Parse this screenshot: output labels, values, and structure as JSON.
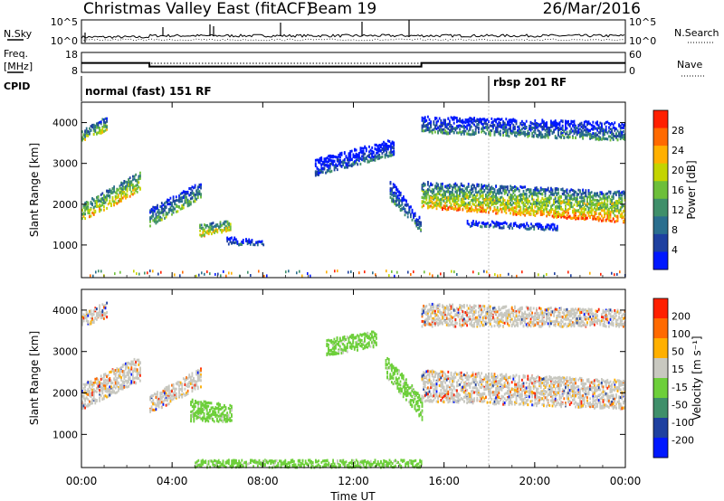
{
  "header": {
    "station": "Christmas Valley East (fitACF)",
    "beam": "Beam 19",
    "date": "26/Mar/2016"
  },
  "top_panels": {
    "nsky_label": "N.Sky",
    "nsky_ticks": [
      "10^5",
      "10^0"
    ],
    "nsearch_label": "N.Search",
    "nsearch_ticks": [
      "10^5",
      "10^0"
    ],
    "freq_label_1": "Freq.",
    "freq_label_2": "[MHz]",
    "freq_ticks": [
      "18",
      "8"
    ],
    "nave_label": "Nave",
    "nave_ticks": [
      "60",
      "0"
    ],
    "cpid_label": "CPID",
    "cpid_modes": [
      {
        "name": "normal (fast) 151 RF",
        "start_hour": 0,
        "end_hour": 18
      },
      {
        "name": "rbsp 201 RF",
        "start_hour": 18,
        "end_hour": 24
      }
    ],
    "frequency_segments": [
      {
        "start_hour": 0,
        "end_hour": 3,
        "freq_mhz": 14.5
      },
      {
        "start_hour": 3,
        "end_hour": 15,
        "freq_mhz": 12
      },
      {
        "start_hour": 15,
        "end_hour": 24,
        "freq_mhz": 14.5
      }
    ]
  },
  "chart_data": [
    {
      "type": "heatmap",
      "panel": "power",
      "ylabel": "Slant Range [km]",
      "yticks": [
        "1000",
        "2000",
        "3000",
        "4000"
      ],
      "ylim": [
        200,
        4500
      ],
      "xlim": [
        0,
        24
      ],
      "colorbar_label": "Power [dB]",
      "colorbar_ticks": [
        "4",
        "8",
        "12",
        "16",
        "20",
        "24",
        "28"
      ],
      "colorbar_range": [
        0,
        30
      ],
      "colors": [
        "#0018ff",
        "#1e40a0",
        "#2a6e8e",
        "#3f8f6a",
        "#6dbf3a",
        "#c4d400",
        "#ffb000",
        "#ff6a00",
        "#ff2000"
      ],
      "regions": [
        {
          "x": [
            0.0,
            2.6
          ],
          "y_bottom": [
            1600,
            2300
          ],
          "y_top": [
            2000,
            2800
          ],
          "power": 22
        },
        {
          "x": [
            0.0,
            1.1
          ],
          "y_bottom": [
            3550,
            3800
          ],
          "y_top": [
            3800,
            4150
          ],
          "power": 18
        },
        {
          "x": [
            3.0,
            5.3
          ],
          "y_bottom": [
            1450,
            2150
          ],
          "y_top": [
            1900,
            2550
          ],
          "power": 15
        },
        {
          "x": [
            5.2,
            6.6
          ],
          "y_bottom": [
            1200,
            1350
          ],
          "y_top": [
            1500,
            1600
          ],
          "power": 22
        },
        {
          "x": [
            6.4,
            8.0
          ],
          "y_bottom": [
            1000,
            1000
          ],
          "y_top": [
            1200,
            1100
          ],
          "power": 8
        },
        {
          "x": [
            10.3,
            13.8
          ],
          "y_bottom": [
            2700,
            3200
          ],
          "y_top": [
            3100,
            3600
          ],
          "power": 7
        },
        {
          "x": [
            13.6,
            15.0
          ],
          "y_bottom": [
            2100,
            1300
          ],
          "y_top": [
            2600,
            1600
          ],
          "power": 12
        },
        {
          "x": [
            15.0,
            24.0
          ],
          "y_bottom": [
            1900,
            1550
          ],
          "y_top": [
            2200,
            2000
          ],
          "power": 27
        },
        {
          "x": [
            15.0,
            24.0
          ],
          "y_bottom": [
            2150,
            1950
          ],
          "y_top": [
            2550,
            2300
          ],
          "power": 18
        },
        {
          "x": [
            15.0,
            24.0
          ],
          "y_bottom": [
            3750,
            3550
          ],
          "y_top": [
            4150,
            4000
          ],
          "power": 12
        },
        {
          "x": [
            17.0,
            21.0
          ],
          "y_bottom": [
            1450,
            1350
          ],
          "y_top": [
            1600,
            1500
          ],
          "power": 9
        }
      ]
    },
    {
      "type": "heatmap",
      "panel": "velocity",
      "ylabel": "Slant Range [km]",
      "yticks": [
        "1000",
        "2000",
        "3000",
        "4000"
      ],
      "ylim": [
        200,
        4500
      ],
      "xlim": [
        0,
        24
      ],
      "xlabel": "Time UT",
      "xticks": [
        "00:00",
        "04:00",
        "08:00",
        "12:00",
        "16:00",
        "20:00",
        "00:00"
      ],
      "colorbar_label": "Velocity [m s⁻¹]",
      "colorbar_ticks": [
        "200",
        "100",
        "50",
        "15",
        "-15",
        "-50",
        "-100",
        "-200"
      ],
      "colorbar_range": [
        -250,
        250
      ],
      "colors": [
        "#0018ff",
        "#1e40a0",
        "#3f8f6a",
        "#6dcf3a",
        "#c8c8c0",
        "#ffb000",
        "#ff6a00",
        "#ff2000"
      ],
      "regions": [
        {
          "x": [
            0.0,
            2.6
          ],
          "y_bottom": [
            1600,
            2300
          ],
          "y_top": [
            2200,
            2900
          ],
          "velocity": 0
        },
        {
          "x": [
            0.0,
            1.1
          ],
          "y_bottom": [
            3600,
            3800
          ],
          "y_top": [
            3900,
            4200
          ],
          "velocity": 0
        },
        {
          "x": [
            3.0,
            5.3
          ],
          "y_bottom": [
            1500,
            2150
          ],
          "y_top": [
            1950,
            2600
          ],
          "velocity": 0
        },
        {
          "x": [
            4.8,
            6.6
          ],
          "y_bottom": [
            1300,
            1300
          ],
          "y_top": [
            1850,
            1700
          ],
          "velocity": 35
        },
        {
          "x": [
            10.8,
            13.0
          ],
          "y_bottom": [
            2900,
            3100
          ],
          "y_top": [
            3300,
            3500
          ],
          "velocity": 30
        },
        {
          "x": [
            13.4,
            15.0
          ],
          "y_bottom": [
            2400,
            1350
          ],
          "y_top": [
            2900,
            1900
          ],
          "velocity": 30
        },
        {
          "x": [
            15.0,
            24.0
          ],
          "y_bottom": [
            1800,
            1600
          ],
          "y_top": [
            2550,
            2300
          ],
          "velocity": 0
        },
        {
          "x": [
            15.0,
            24.0
          ],
          "y_bottom": [
            3600,
            3600
          ],
          "y_top": [
            4150,
            4000
          ],
          "velocity": 0
        },
        {
          "x": [
            5.0,
            15.0
          ],
          "y_bottom": [
            200,
            200
          ],
          "y_top": [
            380,
            380
          ],
          "velocity": 30
        }
      ]
    }
  ]
}
